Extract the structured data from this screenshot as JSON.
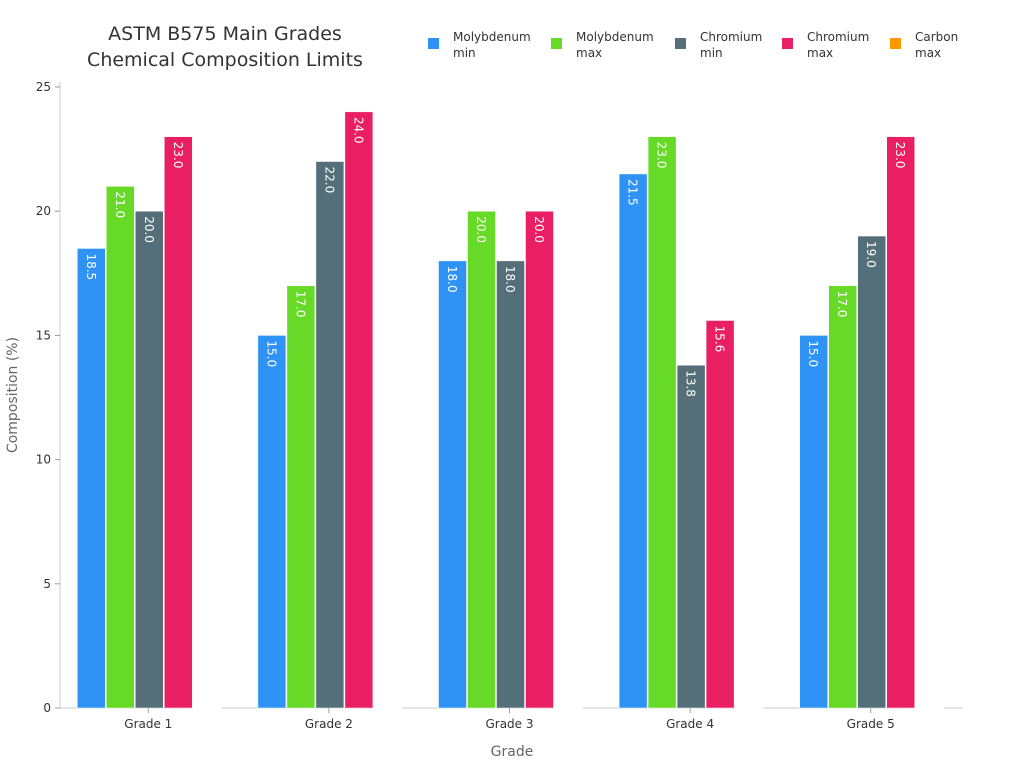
{
  "chart_data": {
    "type": "bar",
    "title": [
      "ASTM B575 Main Grades",
      "Chemical Composition Limits"
    ],
    "xlabel": "Grade",
    "ylabel": "Composition (%)",
    "ylim": [
      0,
      25
    ],
    "yticks": [
      0,
      5,
      10,
      15,
      20,
      25
    ],
    "categories": [
      "Grade 1",
      "Grade 2",
      "Grade 3",
      "Grade 4",
      "Grade 5"
    ],
    "legend_position": "top-right",
    "grid": false,
    "series": [
      {
        "name": [
          "Molybdenum",
          "min"
        ],
        "color": "#2E93F5",
        "values": [
          18.5,
          15.0,
          18.0,
          21.5,
          15.0
        ]
      },
      {
        "name": [
          "Molybdenum",
          "max"
        ],
        "color": "#66DA26",
        "values": [
          21.0,
          17.0,
          20.0,
          23.0,
          17.0
        ]
      },
      {
        "name": [
          "Chromium",
          "min"
        ],
        "color": "#546E7A",
        "values": [
          20.0,
          22.0,
          18.0,
          13.8,
          19.0
        ]
      },
      {
        "name": [
          "Chromium",
          "max"
        ],
        "color": "#E91E63",
        "values": [
          23.0,
          24.0,
          20.0,
          15.6,
          23.0
        ]
      },
      {
        "name": [
          "Carbon",
          "max"
        ],
        "color": "#FF9800",
        "values": [
          0.01,
          0.01,
          0.01,
          0.01,
          0.01
        ]
      }
    ]
  }
}
